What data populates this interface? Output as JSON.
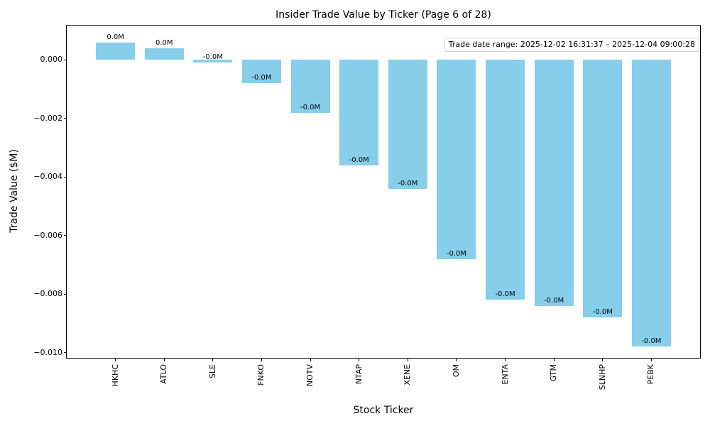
{
  "chart_data": {
    "type": "bar",
    "title": "Insider Trade Value by Ticker (Page 6 of 28)",
    "xlabel": "Stock Ticker",
    "ylabel": "Trade Value ($M)",
    "annotation": "Trade date range: 2025-12-02 16:31:37 – 2025-12-04 09:00:28",
    "categories": [
      "HKHC",
      "ATLO",
      "SLE",
      "FNKO",
      "NOTV",
      "NTAP",
      "XENE",
      "OM",
      "ENTA",
      "GTM",
      "SLNHP",
      "PEBK"
    ],
    "values": [
      0.0006,
      0.0004,
      -0.0001,
      -0.0008,
      -0.0018,
      -0.0036,
      -0.0044,
      -0.0068,
      -0.0082,
      -0.0084,
      -0.0088,
      -0.0098
    ],
    "bar_labels": [
      "0.0M",
      "0.0M",
      "-0.0M",
      "-0.0M",
      "-0.0M",
      "-0.0M",
      "-0.0M",
      "-0.0M",
      "-0.0M",
      "-0.0M",
      "-0.0M",
      "-0.0M"
    ],
    "bar_color": "#87CEEB",
    "ylim": [
      -0.010179,
      0.001171
    ],
    "yticks": [
      0.0,
      -0.002,
      -0.004,
      -0.006,
      -0.008,
      -0.01
    ],
    "ytick_labels": [
      "0.000",
      "−0.002",
      "−0.004",
      "−0.006",
      "−0.008",
      "−0.010"
    ],
    "grid": false,
    "legend": false
  }
}
